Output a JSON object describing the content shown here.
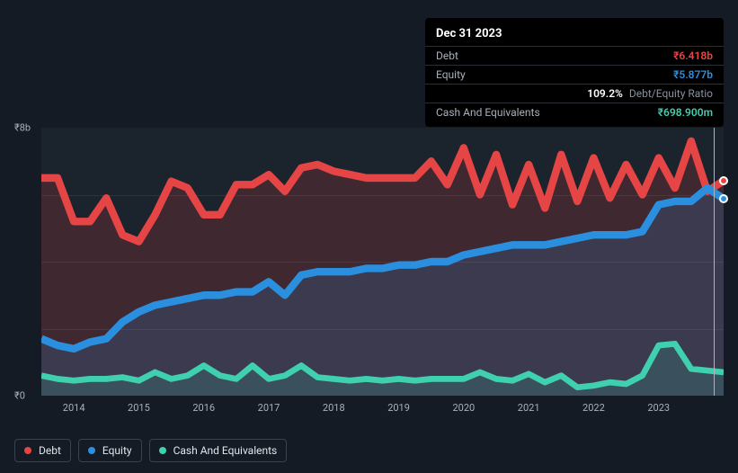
{
  "tooltip": {
    "date": "Dec 31 2023",
    "rows": [
      {
        "label": "Debt",
        "value": "₹6.418b",
        "color": "#e64545"
      },
      {
        "label": "Equity",
        "value": "₹5.877b",
        "color": "#2b8fe0"
      },
      {
        "label": "",
        "value": "109.2%",
        "sub": "Debt/Equity Ratio",
        "color": "#ffffff"
      },
      {
        "label": "Cash And Equivalents",
        "value": "₹698.900m",
        "color": "#3fd0b0"
      }
    ]
  },
  "legend": [
    {
      "label": "Debt",
      "color": "#e64545"
    },
    {
      "label": "Equity",
      "color": "#2b8fe0"
    },
    {
      "label": "Cash And Equivalents",
      "color": "#3fd0b0"
    }
  ],
  "yaxis": {
    "min": 0,
    "max": 8,
    "ticks": [
      {
        "v": 0,
        "label": "₹0"
      },
      {
        "v": 8,
        "label": "₹8b"
      }
    ],
    "gridlines": [
      2,
      4,
      6
    ],
    "unit": "b"
  },
  "xaxis": {
    "min": 2013.5,
    "max": 2024.0,
    "ticks": [
      2014,
      2015,
      2016,
      2017,
      2018,
      2019,
      2020,
      2021,
      2022,
      2023
    ]
  },
  "series": {
    "debt": {
      "color": "#e64545",
      "fill": "rgba(230,69,69,0.18)",
      "width": 2.5,
      "data": [
        [
          2013.5,
          6.5
        ],
        [
          2013.75,
          6.5
        ],
        [
          2014.0,
          5.2
        ],
        [
          2014.25,
          5.2
        ],
        [
          2014.5,
          5.9
        ],
        [
          2014.75,
          4.8
        ],
        [
          2015.0,
          4.6
        ],
        [
          2015.25,
          5.4
        ],
        [
          2015.5,
          6.4
        ],
        [
          2015.75,
          6.2
        ],
        [
          2016.0,
          5.4
        ],
        [
          2016.25,
          5.4
        ],
        [
          2016.5,
          6.3
        ],
        [
          2016.75,
          6.3
        ],
        [
          2017.0,
          6.6
        ],
        [
          2017.25,
          6.1
        ],
        [
          2017.5,
          6.8
        ],
        [
          2017.75,
          6.9
        ],
        [
          2018.0,
          6.7
        ],
        [
          2018.25,
          6.6
        ],
        [
          2018.5,
          6.5
        ],
        [
          2018.75,
          6.5
        ],
        [
          2019.0,
          6.5
        ],
        [
          2019.25,
          6.5
        ],
        [
          2019.5,
          7.0
        ],
        [
          2019.75,
          6.3
        ],
        [
          2020.0,
          7.4
        ],
        [
          2020.25,
          6.0
        ],
        [
          2020.5,
          7.2
        ],
        [
          2020.75,
          5.7
        ],
        [
          2021.0,
          6.9
        ],
        [
          2021.25,
          5.6
        ],
        [
          2021.5,
          7.2
        ],
        [
          2021.75,
          5.8
        ],
        [
          2022.0,
          7.1
        ],
        [
          2022.25,
          5.9
        ],
        [
          2022.5,
          6.9
        ],
        [
          2022.75,
          6.0
        ],
        [
          2023.0,
          7.1
        ],
        [
          2023.25,
          6.2
        ],
        [
          2023.5,
          7.6
        ],
        [
          2023.75,
          6.1
        ],
        [
          2024.0,
          6.418
        ]
      ]
    },
    "equity": {
      "color": "#2b8fe0",
      "fill": "rgba(43,143,224,0.18)",
      "width": 2.5,
      "data": [
        [
          2013.5,
          1.7
        ],
        [
          2013.75,
          1.5
        ],
        [
          2014.0,
          1.4
        ],
        [
          2014.25,
          1.6
        ],
        [
          2014.5,
          1.7
        ],
        [
          2014.75,
          2.2
        ],
        [
          2015.0,
          2.5
        ],
        [
          2015.25,
          2.7
        ],
        [
          2015.5,
          2.8
        ],
        [
          2015.75,
          2.9
        ],
        [
          2016.0,
          3.0
        ],
        [
          2016.25,
          3.0
        ],
        [
          2016.5,
          3.1
        ],
        [
          2016.75,
          3.1
        ],
        [
          2017.0,
          3.4
        ],
        [
          2017.25,
          3.0
        ],
        [
          2017.5,
          3.6
        ],
        [
          2017.75,
          3.7
        ],
        [
          2018.0,
          3.7
        ],
        [
          2018.25,
          3.7
        ],
        [
          2018.5,
          3.8
        ],
        [
          2018.75,
          3.8
        ],
        [
          2019.0,
          3.9
        ],
        [
          2019.25,
          3.9
        ],
        [
          2019.5,
          4.0
        ],
        [
          2019.75,
          4.0
        ],
        [
          2020.0,
          4.2
        ],
        [
          2020.25,
          4.3
        ],
        [
          2020.5,
          4.4
        ],
        [
          2020.75,
          4.5
        ],
        [
          2021.0,
          4.5
        ],
        [
          2021.25,
          4.5
        ],
        [
          2021.5,
          4.6
        ],
        [
          2021.75,
          4.7
        ],
        [
          2022.0,
          4.8
        ],
        [
          2022.25,
          4.8
        ],
        [
          2022.5,
          4.8
        ],
        [
          2022.75,
          4.9
        ],
        [
          2023.0,
          5.7
        ],
        [
          2023.25,
          5.8
        ],
        [
          2023.5,
          5.8
        ],
        [
          2023.75,
          6.2
        ],
        [
          2024.0,
          5.877
        ]
      ]
    },
    "cash": {
      "color": "#3fd0b0",
      "fill": "rgba(63,208,176,0.15)",
      "width": 2,
      "data": [
        [
          2013.5,
          0.6
        ],
        [
          2013.75,
          0.5
        ],
        [
          2014.0,
          0.45
        ],
        [
          2014.25,
          0.5
        ],
        [
          2014.5,
          0.5
        ],
        [
          2014.75,
          0.55
        ],
        [
          2015.0,
          0.45
        ],
        [
          2015.25,
          0.7
        ],
        [
          2015.5,
          0.5
        ],
        [
          2015.75,
          0.6
        ],
        [
          2016.0,
          0.9
        ],
        [
          2016.25,
          0.6
        ],
        [
          2016.5,
          0.5
        ],
        [
          2016.75,
          0.9
        ],
        [
          2017.0,
          0.5
        ],
        [
          2017.25,
          0.6
        ],
        [
          2017.5,
          0.9
        ],
        [
          2017.75,
          0.55
        ],
        [
          2018.0,
          0.5
        ],
        [
          2018.25,
          0.45
        ],
        [
          2018.5,
          0.5
        ],
        [
          2018.75,
          0.45
        ],
        [
          2019.0,
          0.5
        ],
        [
          2019.25,
          0.45
        ],
        [
          2019.5,
          0.5
        ],
        [
          2019.75,
          0.5
        ],
        [
          2020.0,
          0.5
        ],
        [
          2020.25,
          0.7
        ],
        [
          2020.5,
          0.5
        ],
        [
          2020.75,
          0.45
        ],
        [
          2021.0,
          0.65
        ],
        [
          2021.25,
          0.4
        ],
        [
          2021.5,
          0.6
        ],
        [
          2021.75,
          0.25
        ],
        [
          2022.0,
          0.3
        ],
        [
          2022.25,
          0.4
        ],
        [
          2022.5,
          0.35
        ],
        [
          2022.75,
          0.6
        ],
        [
          2023.0,
          1.5
        ],
        [
          2023.25,
          1.55
        ],
        [
          2023.5,
          0.8
        ],
        [
          2023.75,
          0.75
        ],
        [
          2024.0,
          0.699
        ]
      ]
    }
  },
  "hover_x": 2024.0,
  "end_dots": [
    {
      "series": "debt",
      "color": "#e64545"
    },
    {
      "series": "equity",
      "color": "#2b8fe0"
    }
  ]
}
